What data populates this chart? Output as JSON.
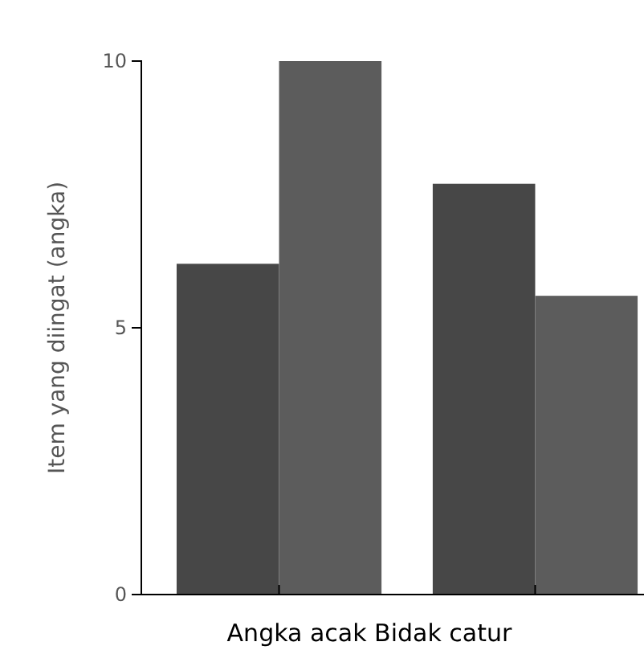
{
  "chart_data": {
    "type": "bar",
    "xlabel": "Angka acak Bidak catur",
    "ylabel": "Item yang diingat (angka)",
    "categories": [
      null,
      null
    ],
    "series": [
      {
        "color": "#474747",
        "values": [
          6.2,
          7.7
        ]
      },
      {
        "color": "#5c5c5c",
        "values": [
          10,
          5.6
        ]
      }
    ],
    "ylim": [
      0,
      10
    ],
    "yticks": [
      0,
      5,
      10
    ],
    "grid": false
  }
}
